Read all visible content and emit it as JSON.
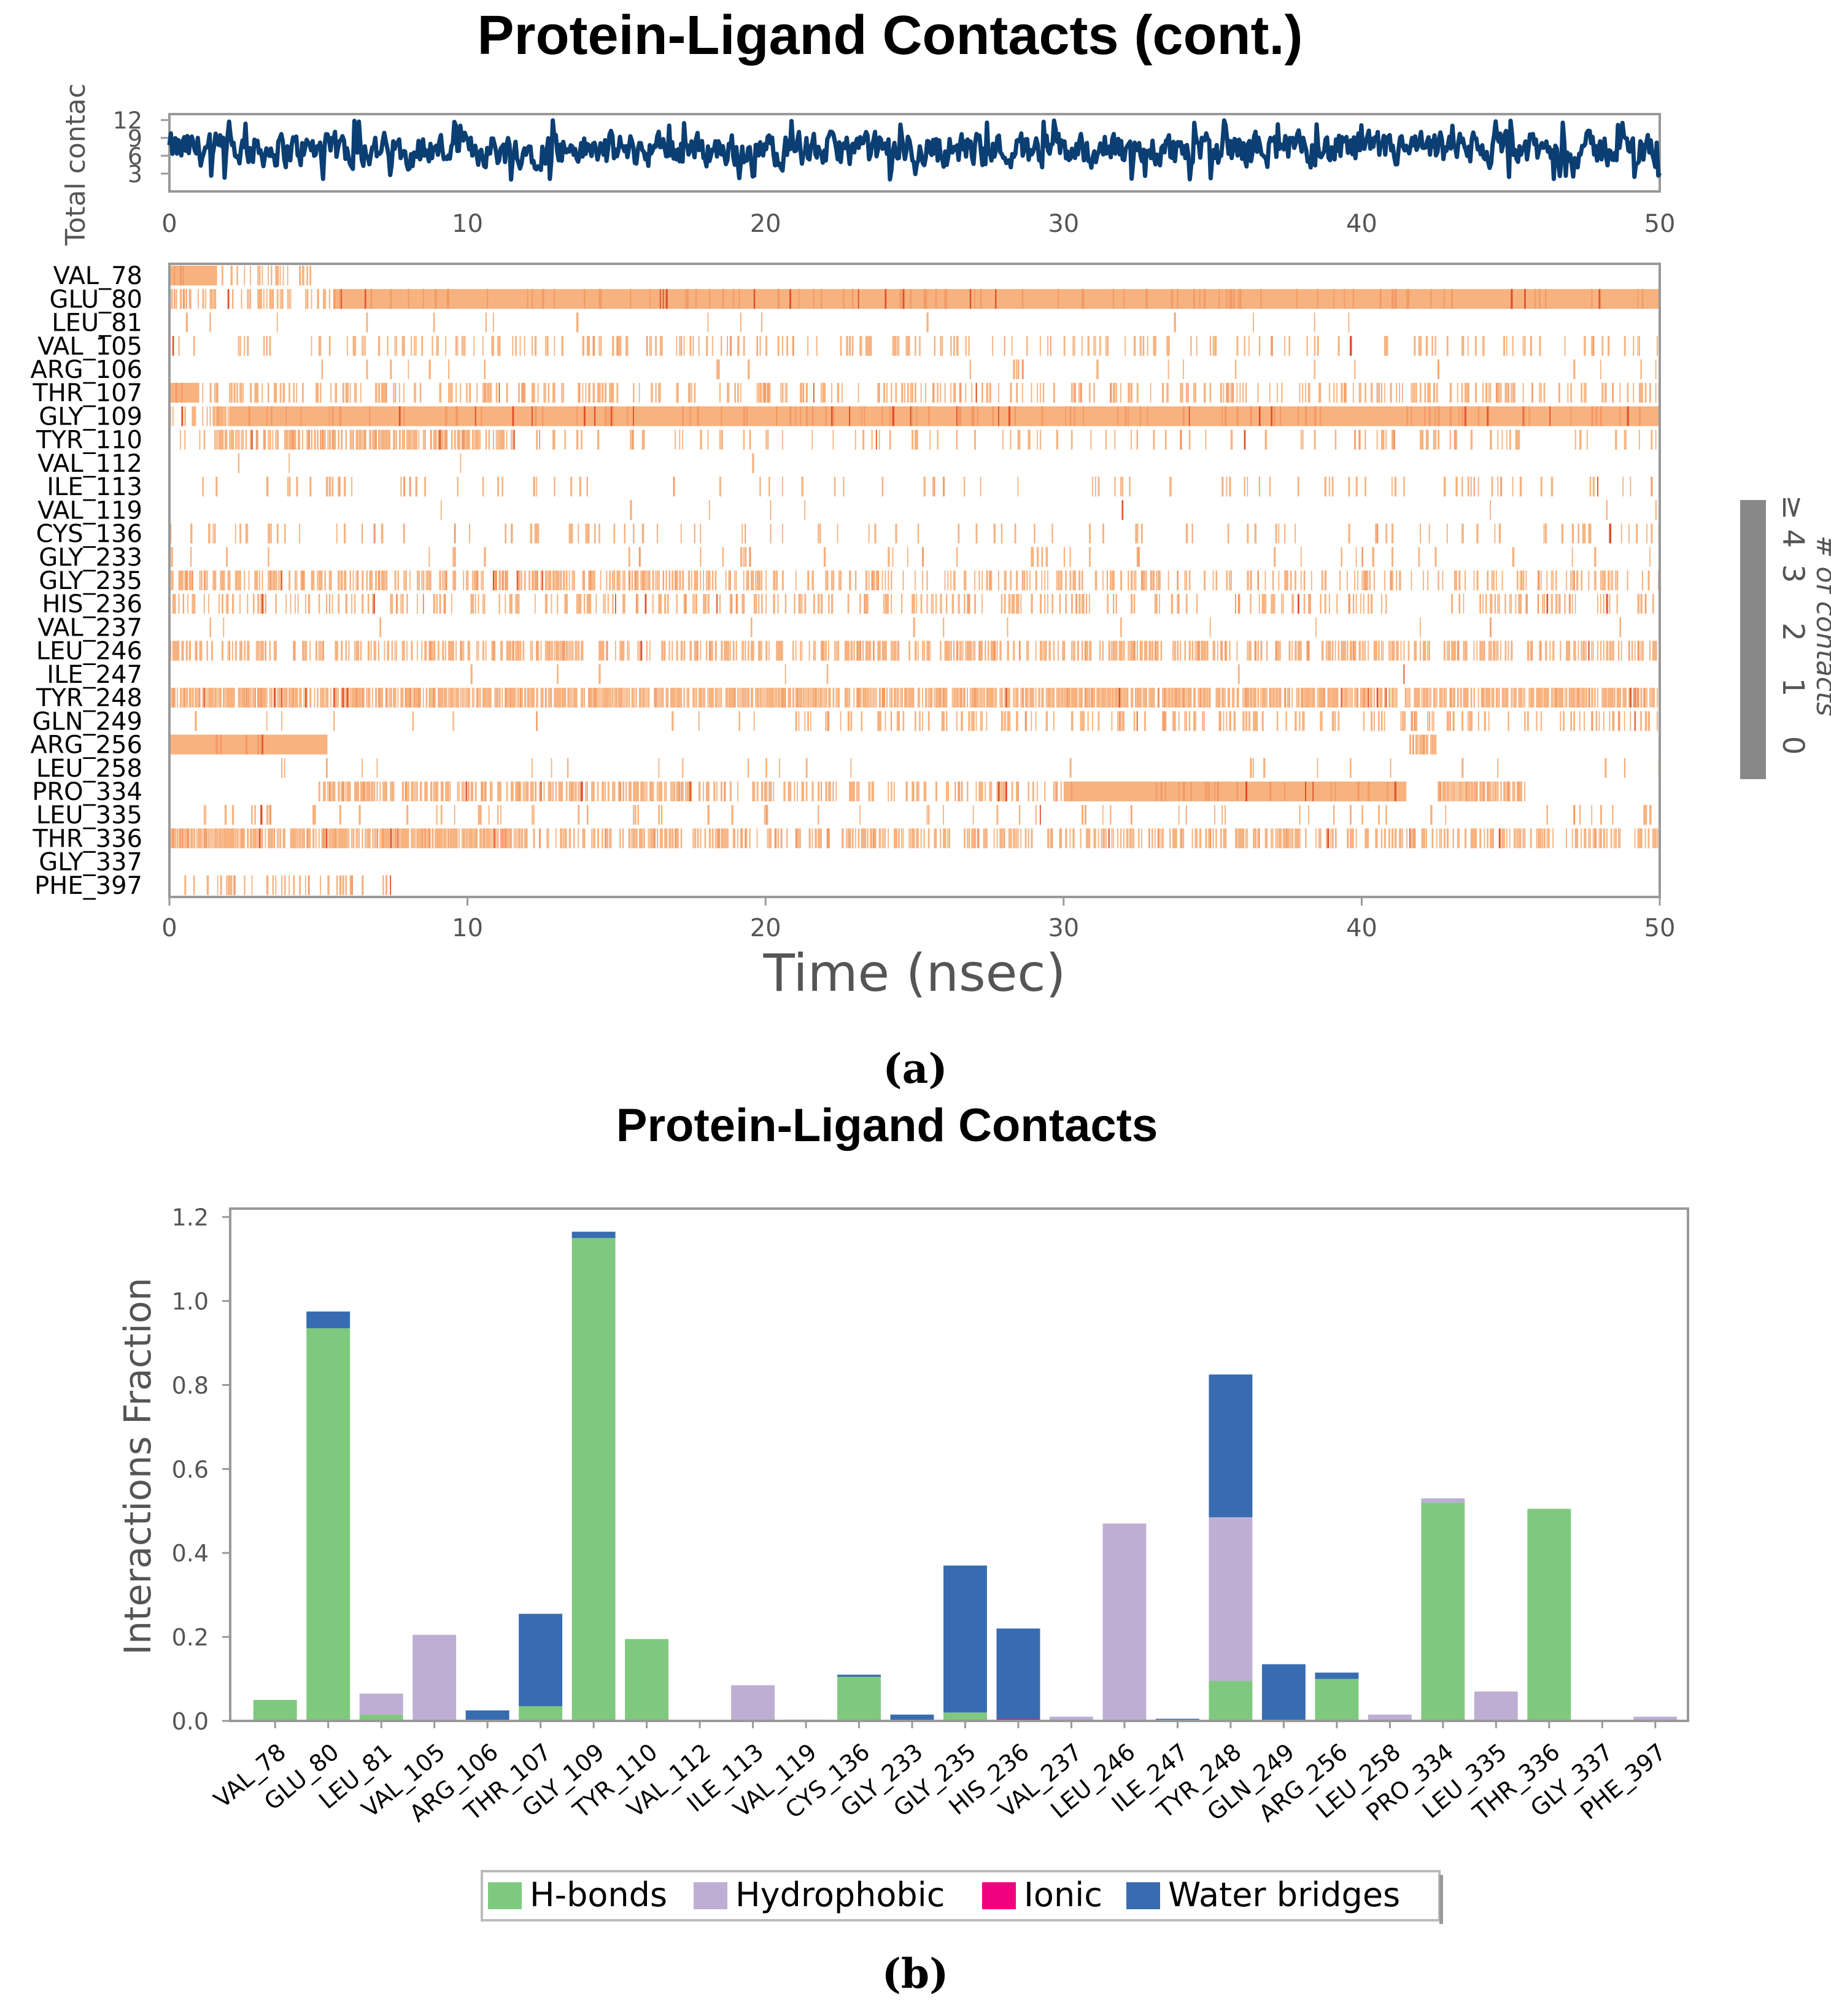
{
  "figure": {
    "caption_a": "(a)",
    "caption_b": "(b)"
  },
  "colors": {
    "timeline": "#0b3f73",
    "contact_light": "#f7b27f",
    "contact_mid": "#f39a66",
    "contact_dark": "#e0502a",
    "hbonds": "#7fc97f",
    "hydrophobic": "#beaed4",
    "ionic": "#f0027f",
    "water_bridges": "#386cb0",
    "colorbar": "#888888",
    "axis_text": "#555555"
  },
  "chart_data": [
    {
      "type": "line",
      "id": "total-contacts",
      "title": "Protein-Ligand Contacts (cont.)",
      "ylabel": "Total contac",
      "xlim": [
        0,
        50
      ],
      "ylim": [
        0,
        13
      ],
      "xticks": [
        "0",
        "10",
        "20",
        "30",
        "40",
        "50"
      ],
      "yticks": [
        "3",
        "6",
        "9",
        "12"
      ],
      "ytick_values": [
        3,
        6,
        9,
        12
      ],
      "series_summary": {
        "samples": 1000,
        "mean": 7,
        "min": 2,
        "max": 12
      }
    },
    {
      "type": "heatmap",
      "id": "contact-timeline",
      "xlabel": "Time (nsec)",
      "xlim": [
        0,
        50
      ],
      "xticks": [
        "0",
        "10",
        "20",
        "30",
        "40",
        "50"
      ],
      "residues": [
        "VAL_78",
        "GLU_80",
        "LEU_81",
        "VAL_105",
        "ARG_106",
        "THR_107",
        "GLY_109",
        "TYR_110",
        "VAL_112",
        "ILE_113",
        "VAL_119",
        "CYS_136",
        "GLY_233",
        "GLY_235",
        "HIS_236",
        "VAL_237",
        "LEU_246",
        "ILE_247",
        "TYR_248",
        "GLN_249",
        "ARG_256",
        "LEU_258",
        "PRO_334",
        "LEU_335",
        "THR_336",
        "GLY_337",
        "PHE_397"
      ],
      "occupancy_profile": {
        "VAL_78": [
          [
            0,
            1.6,
            0.95
          ],
          [
            1.6,
            5.5,
            0.25
          ]
        ],
        "GLU_80": [
          [
            0,
            5.5,
            0.45
          ],
          [
            5.5,
            50,
            0.95
          ]
        ],
        "LEU_81": [
          [
            0,
            50,
            0.01
          ]
        ],
        "VAL_105": [
          [
            0,
            50,
            0.22
          ]
        ],
        "ARG_106": [
          [
            0,
            50,
            0.02
          ]
        ],
        "THR_107": [
          [
            0,
            1,
            0.95
          ],
          [
            1,
            50,
            0.3
          ]
        ],
        "GLY_109": [
          [
            0,
            2,
            0.6
          ],
          [
            2,
            50,
            0.97
          ]
        ],
        "TYR_110": [
          [
            0,
            1.5,
            0.2
          ],
          [
            1.5,
            11.5,
            0.7
          ],
          [
            11.5,
            50,
            0.12
          ]
        ],
        "VAL_112": [
          [
            0,
            50,
            0.01
          ]
        ],
        "ILE_113": [
          [
            0,
            50,
            0.1
          ]
        ],
        "VAL_119": [
          [
            0,
            50,
            0.01
          ]
        ],
        "CYS_136": [
          [
            0,
            50,
            0.12
          ]
        ],
        "GLY_233": [
          [
            0,
            50,
            0.03
          ]
        ],
        "GLY_235": [
          [
            0,
            20,
            0.55
          ],
          [
            20,
            50,
            0.3
          ]
        ],
        "HIS_236": [
          [
            0,
            50,
            0.25
          ]
        ],
        "VAL_237": [
          [
            0,
            50,
            0.01
          ]
        ],
        "LEU_246": [
          [
            0,
            50,
            0.45
          ]
        ],
        "ILE_247": [
          [
            0,
            50,
            0.01
          ]
        ],
        "TYR_248": [
          [
            0,
            50,
            0.8
          ]
        ],
        "GLN_249": [
          [
            0,
            21,
            0.02
          ],
          [
            21,
            50,
            0.25
          ]
        ],
        "ARG_256": [
          [
            0,
            5.3,
            0.95
          ],
          [
            41.5,
            42.5,
            0.5
          ]
        ],
        "LEU_258": [
          [
            0,
            50,
            0.02
          ]
        ],
        "PRO_334": [
          [
            5,
            17.5,
            0.55
          ],
          [
            17.5,
            30,
            0.35
          ],
          [
            30,
            41.5,
            0.9
          ],
          [
            42.5,
            45.5,
            0.85
          ]
        ],
        "LEU_335": [
          [
            0,
            50,
            0.06
          ]
        ],
        "THR_336": [
          [
            0,
            12,
            0.85
          ],
          [
            12,
            50,
            0.45
          ]
        ],
        "GLY_337": [
          [
            0,
            50,
            0.0
          ]
        ],
        "PHE_397": [
          [
            0.5,
            8,
            0.15
          ]
        ]
      }
    },
    {
      "type": "colorbar",
      "id": "contacts-colorbar",
      "label": "# of contacts",
      "ticks": [
        "0",
        "1",
        "2",
        "3",
        "≥ 4"
      ]
    },
    {
      "type": "bar",
      "stacked": true,
      "id": "interactions-fraction",
      "title": "Protein-Ligand Contacts",
      "xlabel": "",
      "ylabel": "Interactions Fraction",
      "ylim": [
        0,
        1.22
      ],
      "yticks": [
        "0.0",
        "0.2",
        "0.4",
        "0.6",
        "0.8",
        "1.0",
        "1.2"
      ],
      "ytick_values": [
        0,
        0.2,
        0.4,
        0.6,
        0.8,
        1.0,
        1.2
      ],
      "categories": [
        "VAL_78",
        "GLU_80",
        "LEU_81",
        "VAL_105",
        "ARG_106",
        "THR_107",
        "GLY_109",
        "TYR_110",
        "VAL_112",
        "ILE_113",
        "VAL_119",
        "CYS_136",
        "GLY_233",
        "GLY_235",
        "HIS_236",
        "VAL_237",
        "LEU_246",
        "ILE_247",
        "TYR_248",
        "GLN_249",
        "ARG_256",
        "LEU_258",
        "PRO_334",
        "LEU_335",
        "THR_336",
        "GLY_337",
        "PHE_397"
      ],
      "series": [
        {
          "name": "H-bonds",
          "values": [
            0.05,
            0.935,
            0.015,
            0,
            0,
            0.035,
            1.15,
            0.195,
            0,
            0,
            0,
            0.105,
            0,
            0.02,
            0,
            0,
            0,
            0,
            0.095,
            0,
            0.1,
            0,
            0.52,
            0,
            0.505,
            0,
            0
          ]
        },
        {
          "name": "Hydrophobic",
          "values": [
            0,
            0,
            0.05,
            0.205,
            0,
            0,
            0,
            0,
            0,
            0.085,
            0,
            0,
            0,
            0,
            0,
            0.01,
            0.47,
            0,
            0.39,
            0,
            0,
            0.015,
            0.01,
            0.07,
            0,
            0,
            0.01
          ]
        },
        {
          "name": "Ionic",
          "values": [
            0,
            0,
            0,
            0,
            0,
            0,
            0,
            0,
            0,
            0,
            0,
            0,
            0,
            0,
            0.005,
            0,
            0,
            0,
            0,
            0,
            0,
            0,
            0,
            0,
            0,
            0,
            0
          ]
        },
        {
          "name": "Water bridges",
          "values": [
            0,
            0.04,
            0,
            0,
            0.025,
            0.22,
            0.015,
            0,
            0,
            0,
            0.003,
            0.005,
            0.015,
            0.35,
            0.215,
            0,
            0,
            0.005,
            0.34,
            0.135,
            0.015,
            0,
            0,
            0,
            0,
            0,
            0
          ]
        }
      ],
      "legend": [
        "H-bonds",
        "Hydrophobic",
        "Ionic",
        "Water bridges"
      ],
      "legend_position": "bottom"
    }
  ]
}
